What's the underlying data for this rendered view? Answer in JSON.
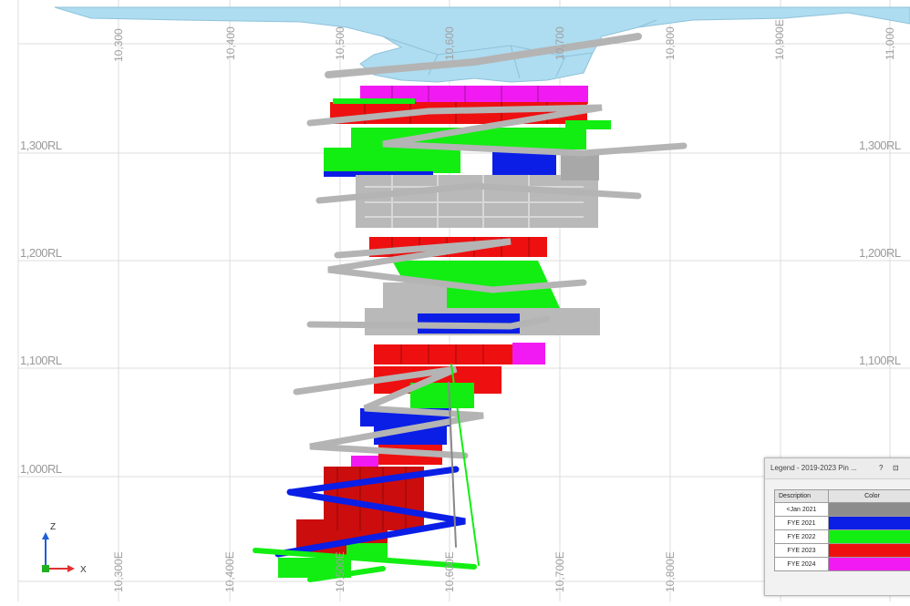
{
  "view": {
    "easting_labels_top": [
      "10,300",
      "10,400",
      "10,500",
      "10,600",
      "10,700",
      "10,800",
      "10,900E",
      "11,000"
    ],
    "easting_labels_bottom": [
      "10,300E",
      "10,400E",
      "10,500E",
      "10,600E",
      "10,700E",
      "10,800E"
    ],
    "rl_labels_left": [
      "1,300RL",
      "1,200RL",
      "1,100RL",
      "1,000RL"
    ],
    "rl_labels_right": [
      "1,300RL",
      "1,200RL",
      "1,100RL"
    ],
    "axis": {
      "vertical": "Z",
      "horizontal": "X"
    }
  },
  "legend": {
    "title": "Legend - 2019-2023 Pin ...",
    "controls": [
      "?",
      "⊡"
    ],
    "columns": [
      "Description",
      "Color"
    ],
    "rows": [
      {
        "description": "<Jan 2021",
        "color": "#8c8c8c"
      },
      {
        "description": "FYE 2021",
        "color": "#0a1ee6"
      },
      {
        "description": "FYE 2022",
        "color": "#12ee12"
      },
      {
        "description": "FYE 2023",
        "color": "#ee1010"
      },
      {
        "description": "FYE 2024",
        "color": "#f21af2"
      }
    ]
  },
  "colors": {
    "surface": "#aedcf0",
    "development": "#b4b4b4",
    "grid": "#dddddd"
  }
}
